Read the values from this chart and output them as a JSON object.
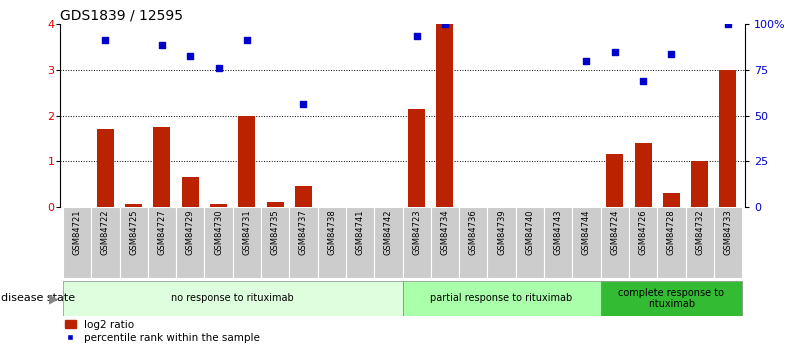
{
  "title": "GDS1839 / 12595",
  "samples": [
    "GSM84721",
    "GSM84722",
    "GSM84725",
    "GSM84727",
    "GSM84729",
    "GSM84730",
    "GSM84731",
    "GSM84735",
    "GSM84737",
    "GSM84738",
    "GSM84741",
    "GSM84742",
    "GSM84723",
    "GSM84734",
    "GSM84736",
    "GSM84739",
    "GSM84740",
    "GSM84743",
    "GSM84744",
    "GSM84724",
    "GSM84726",
    "GSM84728",
    "GSM84732",
    "GSM84733"
  ],
  "log2_ratio": [
    0.0,
    1.7,
    0.07,
    1.75,
    0.65,
    0.07,
    2.0,
    0.1,
    0.45,
    0.0,
    0.0,
    0.0,
    2.15,
    4.0,
    0.0,
    0.0,
    0.0,
    0.0,
    0.0,
    1.15,
    1.4,
    0.3,
    1.0,
    3.0
  ],
  "percentile_rank": [
    null,
    3.65,
    null,
    3.55,
    3.3,
    3.05,
    3.65,
    null,
    2.25,
    null,
    null,
    null,
    3.75,
    4.0,
    null,
    null,
    null,
    null,
    3.2,
    3.4,
    2.75,
    3.35,
    null,
    4.0
  ],
  "group_labels": [
    "no response to rituximab",
    "partial response to rituximab",
    "complete response to\nrituximab"
  ],
  "group_colors_bg": [
    "#e8ffe8",
    "#ccffcc",
    "#44cc44"
  ],
  "group_ranges": [
    [
      0,
      12
    ],
    [
      12,
      19
    ],
    [
      19,
      24
    ]
  ],
  "bar_color": "#bb2200",
  "dot_color": "#0000cc",
  "ylim_left": [
    0,
    4
  ],
  "yticks_left": [
    0,
    1,
    2,
    3,
    4
  ],
  "yticks_right_labels": [
    "0",
    "25",
    "50",
    "75",
    "100%"
  ],
  "yticks_right_vals": [
    0,
    1,
    2,
    3,
    4
  ],
  "disease_state_label": "disease state",
  "legend_bar_label": "log2 ratio",
  "legend_dot_label": "percentile rank within the sample",
  "tick_label_color": "#dd0000",
  "right_tick_color": "#0000cc"
}
